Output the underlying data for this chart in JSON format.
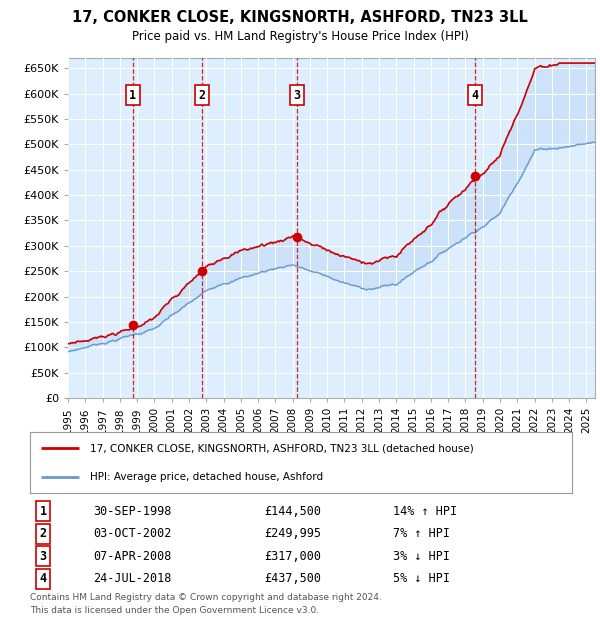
{
  "title_line1": "17, CONKER CLOSE, KINGSNORTH, ASHFORD, TN23 3LL",
  "title_line2": "Price paid vs. HM Land Registry's House Price Index (HPI)",
  "ylim": [
    0,
    670000
  ],
  "yticks": [
    0,
    50000,
    100000,
    150000,
    200000,
    250000,
    300000,
    350000,
    400000,
    450000,
    500000,
    550000,
    600000,
    650000
  ],
  "ytick_labels": [
    "£0",
    "£50K",
    "£100K",
    "£150K",
    "£200K",
    "£250K",
    "£300K",
    "£350K",
    "£400K",
    "£450K",
    "£500K",
    "£550K",
    "£600K",
    "£650K"
  ],
  "xlim_start": 1995.0,
  "xlim_end": 2025.5,
  "sale_dates": [
    1998.748,
    2002.748,
    2008.268,
    2018.556
  ],
  "sale_prices": [
    144500,
    249995,
    317000,
    437500
  ],
  "sale_labels": [
    "1",
    "2",
    "3",
    "4"
  ],
  "red_line_color": "#cc0000",
  "blue_line_color": "#6699cc",
  "fill_color": "#aaccee",
  "fill_alpha": 0.35,
  "background_color": "#ffffff",
  "plot_bg_color": "#ddeeff",
  "grid_color": "#ffffff",
  "vline_color": "#cc0000",
  "legend_label_red": "17, CONKER CLOSE, KINGSNORTH, ASHFORD, TN23 3LL (detached house)",
  "legend_label_blue": "HPI: Average price, detached house, Ashford",
  "footer_line1": "Contains HM Land Registry data © Crown copyright and database right 2024.",
  "footer_line2": "This data is licensed under the Open Government Licence v3.0.",
  "table_rows": [
    [
      "1",
      "30-SEP-1998",
      "£144,500",
      "14% ↑ HPI"
    ],
    [
      "2",
      "03-OCT-2002",
      "£249,995",
      "7% ↑ HPI"
    ],
    [
      "3",
      "07-APR-2008",
      "£317,000",
      "3% ↓ HPI"
    ],
    [
      "4",
      "24-JUL-2018",
      "£437,500",
      "5% ↓ HPI"
    ]
  ]
}
